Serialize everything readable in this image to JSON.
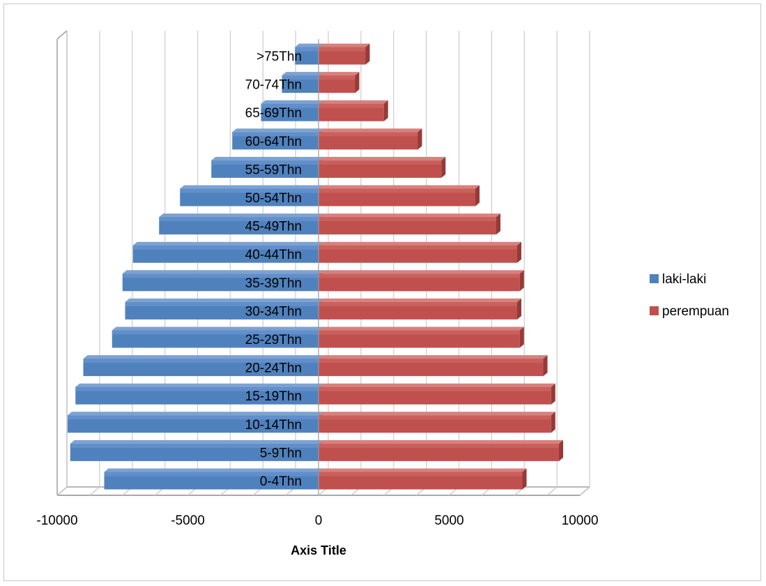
{
  "chart_data": {
    "type": "bar",
    "orientation": "horizontal",
    "style": "3d-clustered-population-pyramid",
    "categories": [
      "0-4Thn",
      "5-9Thn",
      "10-14Thn",
      "15-19Thn",
      "20-24Thn",
      "25-29Thn",
      "30-34Thn",
      "35-39Thn",
      "40-44Thn",
      "45-49Thn",
      "50-54Thn",
      "55-59Thn",
      "60-64Thn",
      "65-69Thn",
      "70-74Thn",
      ">75Thn"
    ],
    "series": [
      {
        "name": "laki-laki",
        "color": "#4f81bd",
        "values": [
          -8200,
          -9500,
          -9600,
          -9300,
          -9000,
          -7900,
          -7400,
          -7500,
          -7100,
          -6100,
          -5300,
          -4100,
          -3300,
          -2200,
          -1400,
          -900
        ]
      },
      {
        "name": "perempuan",
        "color": "#c0504d",
        "values": [
          7800,
          9200,
          8900,
          8900,
          8600,
          7700,
          7600,
          7700,
          7600,
          6800,
          6000,
          4700,
          3800,
          2500,
          1400,
          1800
        ]
      }
    ],
    "xaxis": {
      "title": "Axis Title",
      "ticks": [
        "-10000",
        "-5000",
        "0",
        "5000",
        "10000"
      ],
      "tick_values": [
        -10000,
        -5000,
        0,
        5000,
        10000
      ],
      "range": [
        -10000,
        10000
      ]
    },
    "gridlines": true,
    "legend": "right"
  }
}
